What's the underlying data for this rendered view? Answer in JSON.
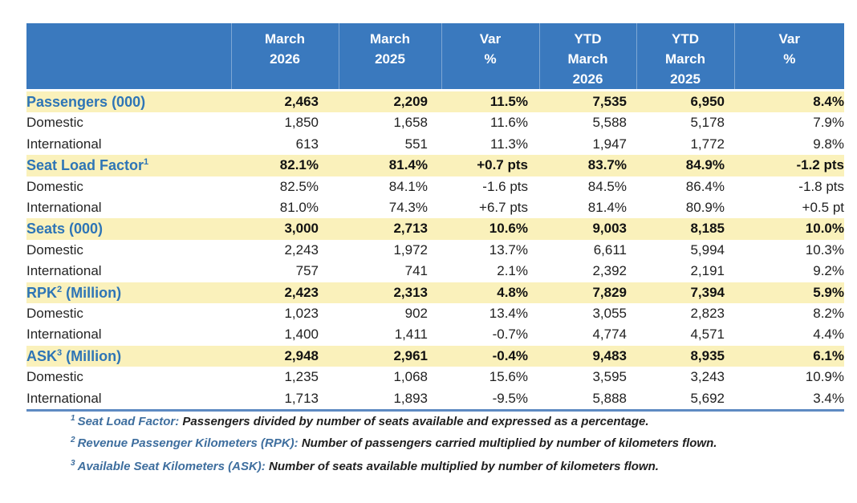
{
  "colors": {
    "header_background": "#3A79BE",
    "header_text": "#FFFFFF",
    "section_row_background": "#FAF1BB",
    "section_label_blue": "#2E75B6",
    "body_text": "#1F1F1F",
    "table_bottom_border": "#5E8AC2",
    "footnote_term_blue": "#3E6E9E"
  },
  "table": {
    "header": {
      "columns": [
        "",
        "March\n2026",
        "March\n2025",
        "Var\n%",
        "YTD\nMarch\n2026",
        "YTD\nMarch\n2025",
        "Var\n%"
      ]
    },
    "rows": [
      {
        "type": "section",
        "label": "Passengers (000)",
        "label_sup": "",
        "label_post": "",
        "values": [
          "2,463",
          "2,209",
          "11.5%",
          "7,535",
          "6,950",
          "8.4%"
        ]
      },
      {
        "type": "sub",
        "label": "Domestic",
        "label_sup": "",
        "label_post": "",
        "values": [
          "1,850",
          "1,658",
          "11.6%",
          "5,588",
          "5,178",
          "7.9%"
        ]
      },
      {
        "type": "sub",
        "label": "International",
        "label_sup": "",
        "label_post": "",
        "values": [
          "613",
          "551",
          "11.3%",
          "1,947",
          "1,772",
          "9.8%"
        ]
      },
      {
        "type": "section",
        "label": "Seat Load Factor",
        "label_sup": "1",
        "label_post": "",
        "values": [
          "82.1%",
          "81.4%",
          "+0.7 pts",
          "83.7%",
          "84.9%",
          "-1.2 pts"
        ]
      },
      {
        "type": "sub",
        "label": "Domestic",
        "label_sup": "",
        "label_post": "",
        "values": [
          "82.5%",
          "84.1%",
          "-1.6 pts",
          "84.5%",
          "86.4%",
          "-1.8 pts"
        ]
      },
      {
        "type": "sub",
        "label": "International",
        "label_sup": "",
        "label_post": "",
        "values": [
          "81.0%",
          "74.3%",
          "+6.7 pts",
          "81.4%",
          "80.9%",
          "+0.5 pt"
        ]
      },
      {
        "type": "section",
        "label": "Seats (000)",
        "label_sup": "",
        "label_post": "",
        "values": [
          "3,000",
          "2,713",
          "10.6%",
          "9,003",
          "8,185",
          "10.0%"
        ]
      },
      {
        "type": "sub",
        "label": "Domestic",
        "label_sup": "",
        "label_post": "",
        "values": [
          "2,243",
          "1,972",
          "13.7%",
          "6,611",
          "5,994",
          "10.3%"
        ]
      },
      {
        "type": "sub",
        "label": "International",
        "label_sup": "",
        "label_post": "",
        "values": [
          "757",
          "741",
          "2.1%",
          "2,392",
          "2,191",
          "9.2%"
        ]
      },
      {
        "type": "section",
        "label": "RPK",
        "label_sup": "2",
        "label_post": " (Million)",
        "values": [
          "2,423",
          "2,313",
          "4.8%",
          "7,829",
          "7,394",
          "5.9%"
        ]
      },
      {
        "type": "sub",
        "label": "Domestic",
        "label_sup": "",
        "label_post": "",
        "values": [
          "1,023",
          "902",
          "13.4%",
          "3,055",
          "2,823",
          "8.2%"
        ]
      },
      {
        "type": "sub",
        "label": "International",
        "label_sup": "",
        "label_post": "",
        "values": [
          "1,400",
          "1,411",
          "-0.7%",
          "4,774",
          "4,571",
          "4.4%"
        ]
      },
      {
        "type": "section",
        "label": "ASK",
        "label_sup": "3",
        "label_post": " (Million)",
        "values": [
          "2,948",
          "2,961",
          "-0.4%",
          "9,483",
          "8,935",
          "6.1%"
        ]
      },
      {
        "type": "sub",
        "label": "Domestic",
        "label_sup": "",
        "label_post": "",
        "values": [
          "1,235",
          "1,068",
          "15.6%",
          "3,595",
          "3,243",
          "10.9%"
        ]
      },
      {
        "type": "sub",
        "label": "International",
        "label_sup": "",
        "label_post": "",
        "values": [
          "1,713",
          "1,893",
          "-9.5%",
          "5,888",
          "5,692",
          "3.4%"
        ]
      }
    ]
  },
  "footnotes": [
    {
      "sup": "1",
      "term": "Seat Load Factor:",
      "definition": "Passengers divided by number of seats available and expressed as a percentage."
    },
    {
      "sup": "2",
      "term": "Revenue Passenger Kilometers (RPK):",
      "definition": "Number of passengers carried multiplied by number of kilometers flown."
    },
    {
      "sup": "3",
      "term": "Available Seat Kilometers (ASK):",
      "definition": "Number of seats available multiplied by number of kilometers flown."
    }
  ]
}
